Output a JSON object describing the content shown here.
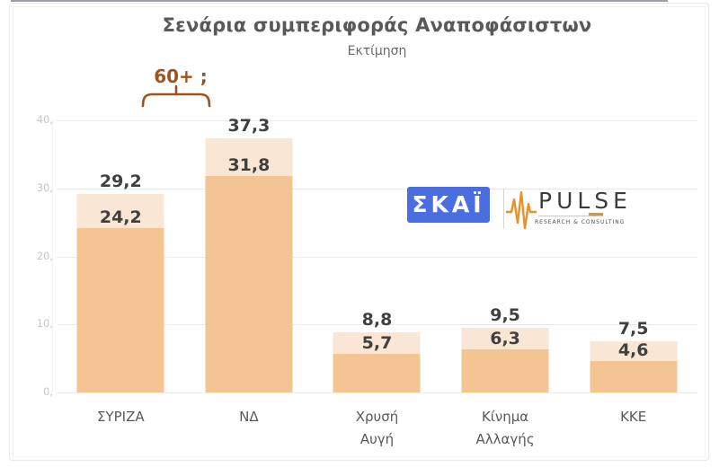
{
  "page": {
    "title": "Σενάρια συμπεριφοράς Αναποφάσιστων",
    "subtitle": "Εκτίμηση"
  },
  "annotation": {
    "label": "60+ ;"
  },
  "colors": {
    "bar_light": "#fae6d5",
    "bar_dark": "#f3c592",
    "label_dark": "#404040",
    "axis_gray": "#c6c6c6",
    "grid_gray": "#ebebeb",
    "annotation_brown": "#9e531f",
    "skai_blue": "#4a6ee0",
    "pulse_orange": "#e8912b"
  },
  "y_axis": {
    "ticks": [
      "40,",
      "30,",
      "20,",
      "10,",
      "0,"
    ]
  },
  "bars": [
    {
      "category": "ΣΥΡΙΖΑ",
      "category_lines": [
        "ΣΥΡΙΖΑ"
      ],
      "total": 29.2,
      "inner": 24.2,
      "total_label": "29,2",
      "inner_label": "24,2"
    },
    {
      "category": "ΝΔ",
      "category_lines": [
        "ΝΔ"
      ],
      "total": 37.3,
      "inner": 31.8,
      "total_label": "37,3",
      "inner_label": "31,8"
    },
    {
      "category": "Χρυσή Αυγή",
      "category_lines": [
        "Χρυσή",
        "Αυγή"
      ],
      "total": 8.8,
      "inner": 5.7,
      "total_label": "8,8",
      "inner_label": "5,7"
    },
    {
      "category": "Κίνημα Αλλαγής",
      "category_lines": [
        "Κίνημα",
        "Αλλαγής"
      ],
      "total": 9.5,
      "inner": 6.3,
      "total_label": "9,5",
      "inner_label": "6,3"
    },
    {
      "category": "ΚΚΕ",
      "category_lines": [
        "ΚΚΕ"
      ],
      "total": 7.5,
      "inner": 4.6,
      "total_label": "7,5",
      "inner_label": "4,6"
    }
  ],
  "logos": {
    "skai": {
      "text": "ΣΚΑΪ"
    },
    "pulse": {
      "name": "PULSE",
      "tagline": "RESEARCH & CONSULTING"
    }
  },
  "chart_data": {
    "type": "bar",
    "title": "Σενάρια συμπεριφοράς Αναποφάσιστων",
    "subtitle": "Εκτίμηση",
    "annotation": "60+ ;",
    "categories": [
      "ΣΥΡΙΖΑ",
      "ΝΔ",
      "Χρυσή Αυγή",
      "Κίνημα Αλλαγής",
      "ΚΚΕ"
    ],
    "series": [
      {
        "name": "outer_light_bar",
        "values": [
          29.2,
          37.3,
          8.8,
          9.5,
          7.5
        ]
      },
      {
        "name": "inner_dark_bar",
        "values": [
          24.2,
          31.8,
          5.7,
          6.3,
          4.6
        ]
      }
    ],
    "bar_style": "overlaid",
    "ylim": [
      0,
      40
    ],
    "yticks": [
      0,
      10,
      20,
      30,
      40
    ],
    "grid": true,
    "legend": false
  }
}
